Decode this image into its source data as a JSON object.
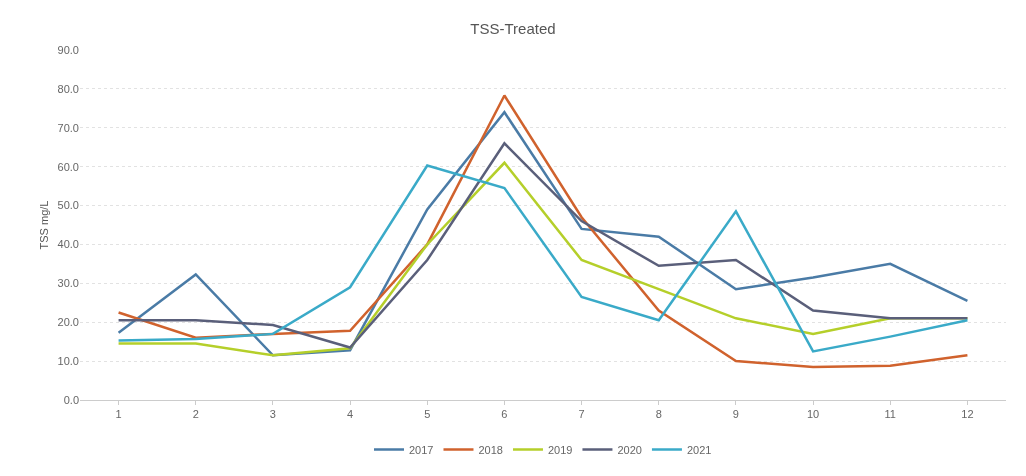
{
  "chart_data": {
    "type": "line",
    "title": "TSS-Treated",
    "ylabel": "TSS mg/L",
    "categories": [
      "1",
      "2",
      "3",
      "4",
      "5",
      "6",
      "7",
      "8",
      "9",
      "10",
      "11",
      "12"
    ],
    "series": [
      {
        "name": "2017",
        "color": "#4a7ba6",
        "values": [
          17.3,
          32.3,
          11.5,
          12.8,
          49,
          74,
          44,
          42,
          28.5,
          31.5,
          35,
          25.5
        ]
      },
      {
        "name": "2018",
        "color": "#d0622d",
        "values": [
          22.5,
          16,
          17,
          17.8,
          40,
          78.3,
          47,
          23,
          10,
          8.5,
          8.8,
          11.5
        ]
      },
      {
        "name": "2019",
        "color": "#b5cf2a",
        "values": [
          14.5,
          14.5,
          11.5,
          13.3,
          40,
          61,
          36,
          28.5,
          21,
          17,
          21,
          21
        ]
      },
      {
        "name": "2020",
        "color": "#5a5f7a",
        "values": [
          20.5,
          20.5,
          19.3,
          13.5,
          36,
          66,
          46,
          34.5,
          36,
          23,
          21,
          21
        ]
      },
      {
        "name": "2021",
        "color": "#3aaac8",
        "values": [
          15.3,
          15.7,
          17,
          29,
          60.3,
          54.5,
          26.5,
          20.5,
          48.5,
          12.5,
          16.3,
          20.5
        ]
      }
    ],
    "ylim": [
      0,
      90
    ],
    "yticks": [
      {
        "value": 0,
        "label": "0.0"
      },
      {
        "value": 10,
        "label": "10.0"
      },
      {
        "value": 20,
        "label": "20.0"
      },
      {
        "value": 30,
        "label": "30.0"
      },
      {
        "value": 40,
        "label": "40.0"
      },
      {
        "value": 50,
        "label": "50.0"
      },
      {
        "value": 60,
        "label": "60.0"
      },
      {
        "value": 70,
        "label": "70.0"
      },
      {
        "value": 80,
        "label": "80.0"
      },
      {
        "value": 90,
        "label": "90.0"
      }
    ],
    "grid": "y",
    "legend": "bottom",
    "marker": "none",
    "line_style": "solid"
  }
}
